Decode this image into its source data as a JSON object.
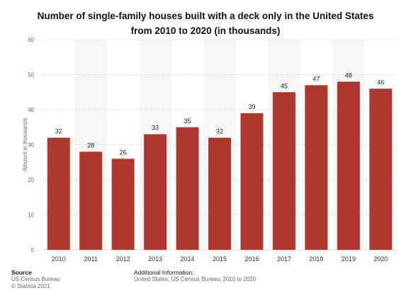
{
  "title_lines": [
    "Number of single-family houses built with a deck only in the United States",
    "from 2010 to 2020 (in thousands)"
  ],
  "chart_data": {
    "type": "bar",
    "categories": [
      "2010",
      "2011",
      "2012",
      "2013",
      "2014",
      "2015",
      "2016",
      "2017",
      "2018",
      "2019",
      "2020"
    ],
    "values": [
      32,
      28,
      26,
      33,
      35,
      32,
      39,
      45,
      47,
      48,
      46
    ],
    "ylabel": "Amount in thousands",
    "xlabel": "",
    "ylim": [
      0,
      60
    ],
    "yticks": [
      0,
      10,
      20,
      30,
      40,
      50,
      60
    ],
    "grid": true,
    "bar_color": "#b0372e",
    "grid_color": "#d9d9d9",
    "band_color": "#f6f6f6"
  },
  "footer": {
    "source_heading": "Source",
    "source_lines": [
      "US Census Bureau",
      "© Statista 2021"
    ],
    "info_heading": "Additional Information:",
    "info_line": "United States; US Census Bureau; 2010 to 2020"
  }
}
